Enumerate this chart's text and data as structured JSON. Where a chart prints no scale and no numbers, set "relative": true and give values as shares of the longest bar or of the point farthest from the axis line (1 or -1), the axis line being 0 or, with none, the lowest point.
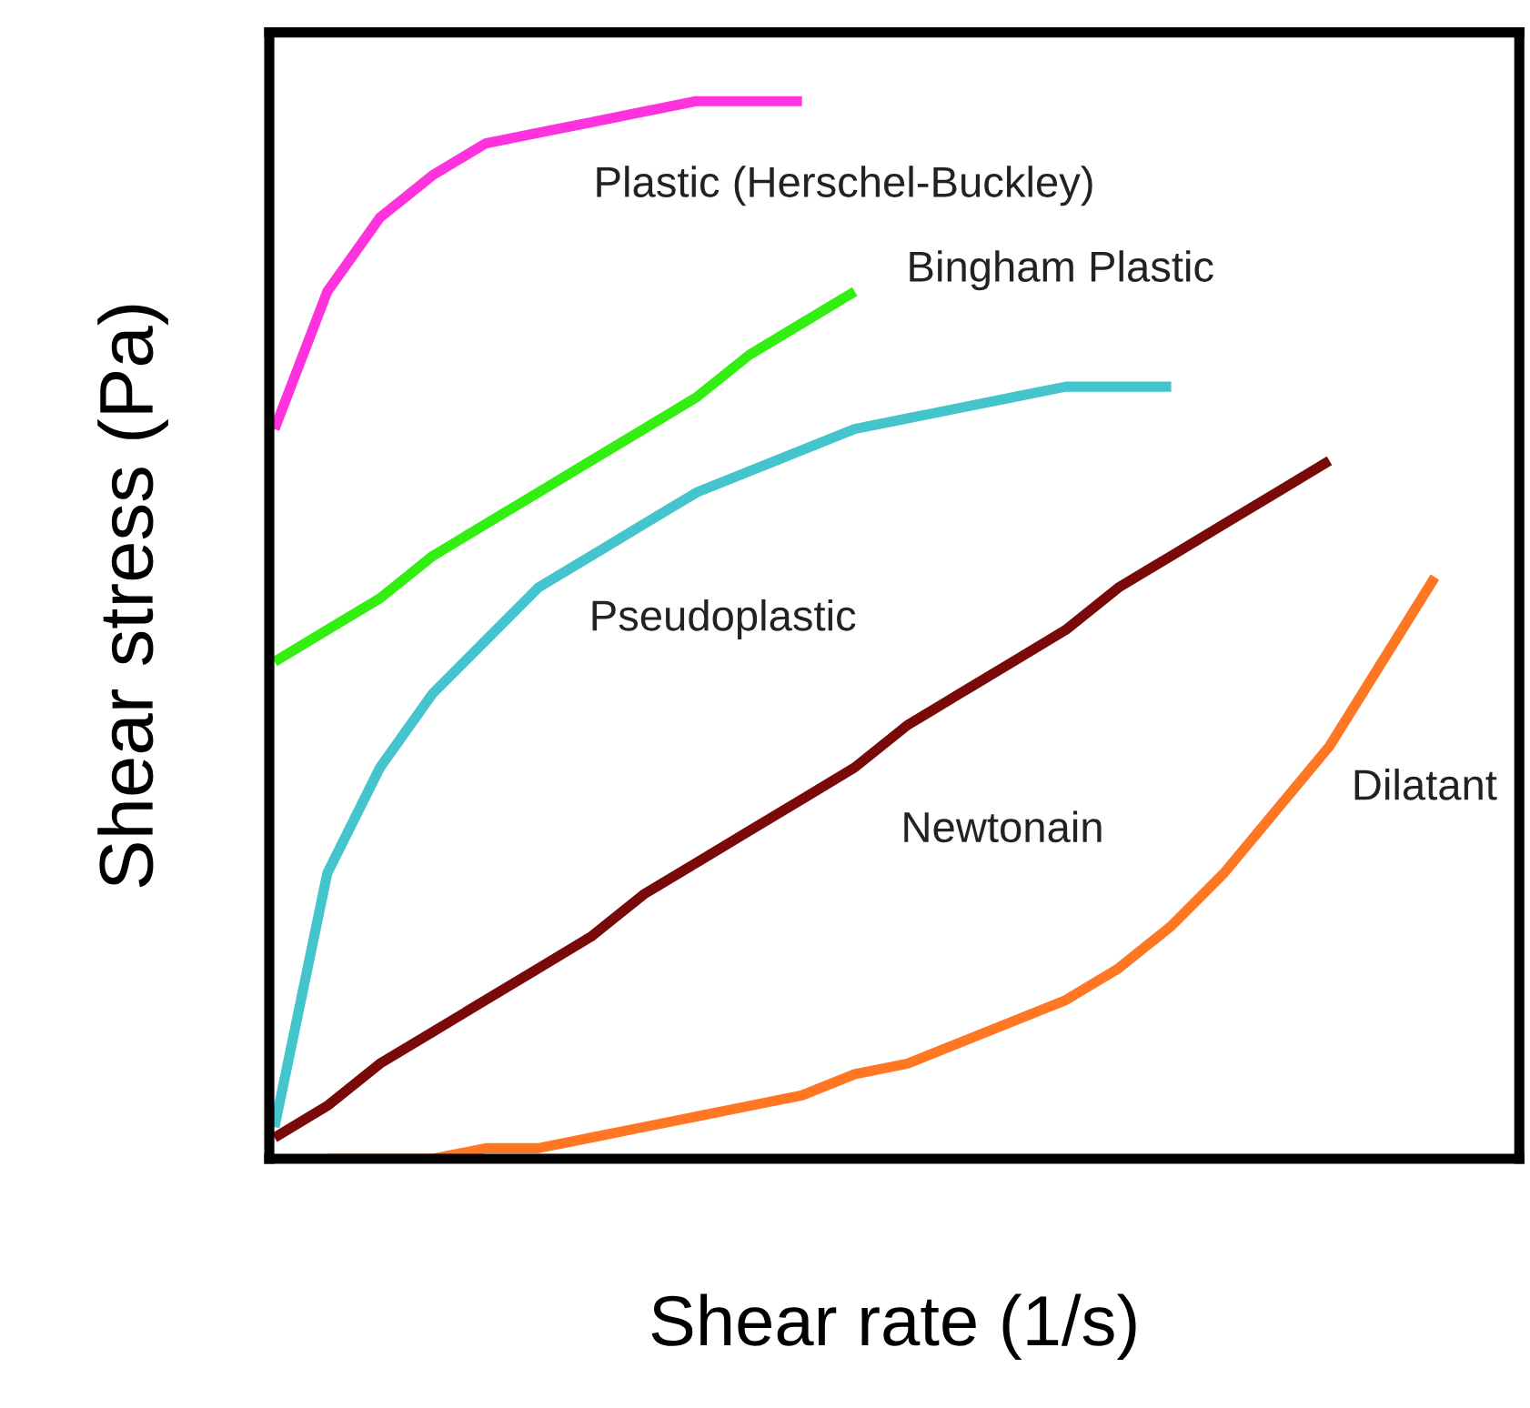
{
  "chart_data": {
    "type": "line",
    "relative": true,
    "xlabel": "Shear rate (1/s)",
    "ylabel": "Shear stress (Pa)",
    "grid": false,
    "legend": false,
    "marker": "none",
    "line_style": "solid",
    "categories": [
      null,
      null,
      null,
      null,
      null,
      null,
      null,
      null,
      null,
      null,
      null,
      null,
      null,
      null,
      null,
      null,
      null,
      null,
      null,
      null,
      null,
      null,
      null,
      null
    ],
    "series": [
      {
        "name": "Plastic (Herschel-Buckley)",
        "color": "#ff33dd",
        "values": [
          0.69,
          0.82,
          0.89,
          0.93,
          0.96,
          0.97,
          0.98,
          0.99,
          1.0,
          1.0,
          1.0,
          null,
          null,
          null,
          null,
          null,
          null,
          null,
          null,
          null,
          null,
          null,
          null,
          null
        ]
      },
      {
        "name": "Bingham Plastic",
        "color": "#33ee11",
        "values": [
          0.47,
          0.5,
          0.53,
          0.57,
          0.6,
          0.63,
          0.66,
          0.69,
          0.72,
          0.76,
          0.79,
          0.82,
          null,
          null,
          null,
          null,
          null,
          null,
          null,
          null,
          null,
          null,
          null,
          null
        ]
      },
      {
        "name": "Pseudoplastic",
        "color": "#44c4cc",
        "values": [
          0.03,
          0.27,
          0.37,
          0.44,
          0.49,
          0.54,
          0.57,
          0.6,
          0.63,
          0.65,
          0.67,
          0.69,
          0.7,
          0.71,
          0.72,
          0.73,
          0.73,
          0.73,
          null,
          null,
          null,
          null,
          null,
          null
        ]
      },
      {
        "name": "Newtonain",
        "color": "#7a0a0a",
        "values": [
          0.02,
          0.05,
          0.09,
          0.12,
          0.15,
          0.18,
          0.21,
          0.25,
          0.28,
          0.31,
          0.34,
          0.37,
          0.41,
          0.44,
          0.47,
          0.5,
          0.54,
          0.57,
          0.6,
          0.63,
          0.66,
          null,
          null,
          null
        ]
      },
      {
        "name": "Dilatant",
        "color": "#ff7722",
        "values": [
          null,
          0,
          0,
          0,
          0.01,
          0.01,
          0.02,
          0.03,
          0.04,
          0.05,
          0.06,
          0.08,
          0.09,
          0.11,
          0.13,
          0.15,
          0.18,
          0.22,
          0.27,
          0.33,
          0.39,
          0.47,
          0.55,
          null
        ]
      }
    ]
  }
}
